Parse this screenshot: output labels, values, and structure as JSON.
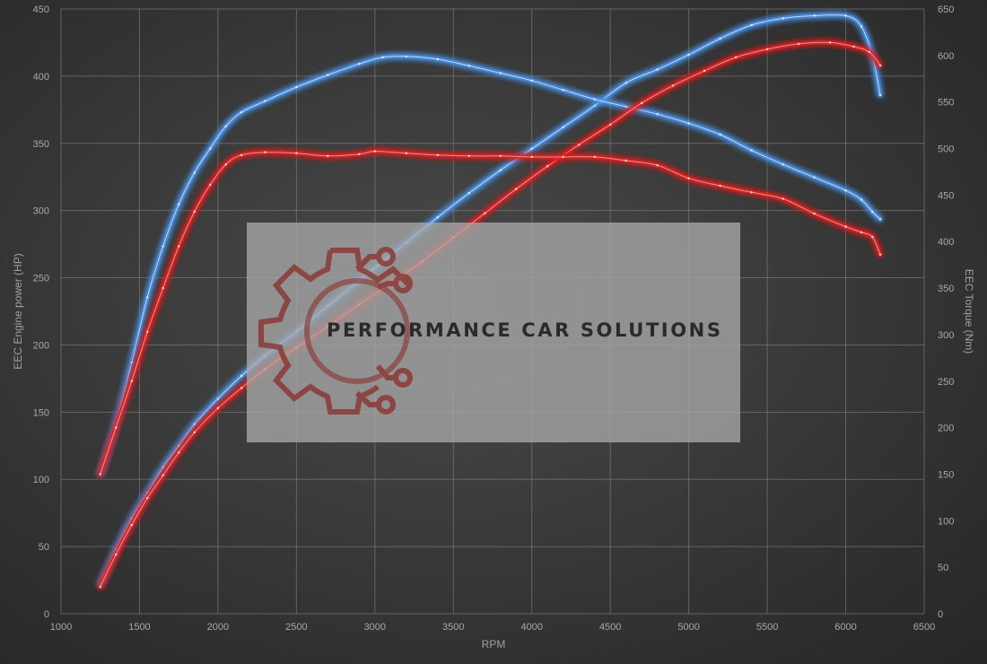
{
  "chart_data": {
    "type": "line",
    "xlabel": "RPM",
    "ylabel_left": "EEC Engine power (HP)",
    "ylabel_right": "EEC Torque (Nm)",
    "xlim": [
      1000,
      6500
    ],
    "ylim_left": [
      0,
      450
    ],
    "ylim_right": [
      0,
      650
    ],
    "x_ticks": [
      1000,
      1500,
      2000,
      2500,
      3000,
      3500,
      4000,
      4500,
      5000,
      5500,
      6000,
      6500
    ],
    "y_ticks_left": [
      0,
      50,
      100,
      150,
      200,
      250,
      300,
      350,
      400,
      450
    ],
    "y_ticks_right": [
      0,
      50,
      100,
      150,
      200,
      250,
      300,
      350,
      400,
      450,
      500,
      550,
      600,
      650
    ],
    "grid": true,
    "series": [
      {
        "color": "#4a8fe0",
        "axis": "left",
        "x": [
          1250,
          1350,
          1450,
          1550,
          1650,
          1750,
          1850,
          2000,
          2150,
          2300,
          2500,
          2700,
          2900,
          3050,
          3200,
          3400,
          3600,
          3800,
          4000,
          4200,
          4400,
          4600,
          4800,
          5000,
          5200,
          5400,
          5600,
          5800,
          6000,
          6100,
          6170,
          6220
        ],
        "y": [
          22,
          48,
          71,
          90,
          109,
          125,
          141,
          160,
          177,
          192,
          210,
          229,
          248,
          262,
          276,
          295,
          313,
          330,
          346,
          362,
          378,
          395,
          405,
          416,
          428,
          438,
          443,
          445,
          445,
          437,
          415,
          386
        ]
      },
      {
        "color": "#4a8fe0",
        "axis": "right",
        "x": [
          1250,
          1350,
          1450,
          1550,
          1650,
          1750,
          1850,
          1950,
          2050,
          2150,
          2300,
          2500,
          2700,
          2900,
          3050,
          3200,
          3400,
          3600,
          3800,
          4000,
          4200,
          4400,
          4600,
          4800,
          5000,
          5200,
          5400,
          5600,
          5800,
          6000,
          6100,
          6170,
          6220
        ],
        "y": [
          150,
          205,
          270,
          340,
          395,
          440,
          474,
          500,
          524,
          539,
          551,
          566,
          579,
          591,
          598,
          599,
          596,
          589,
          581,
          573,
          563,
          553,
          545,
          537,
          527,
          515,
          498,
          483,
          469,
          455,
          445,
          432,
          424
        ]
      },
      {
        "color": "#d42020",
        "axis": "left",
        "x": [
          1250,
          1350,
          1450,
          1550,
          1650,
          1750,
          1850,
          2000,
          2150,
          2300,
          2500,
          2700,
          2900,
          3100,
          3300,
          3500,
          3700,
          3900,
          4100,
          4300,
          4500,
          4700,
          4900,
          5100,
          5300,
          5500,
          5700,
          5900,
          6050,
          6150,
          6220
        ],
        "y": [
          20,
          44,
          66,
          86,
          103,
          120,
          135,
          153,
          168,
          182,
          198,
          214,
          230,
          246,
          262,
          280,
          298,
          316,
          333,
          349,
          364,
          380,
          393,
          404,
          414,
          420,
          424,
          425,
          422,
          418,
          408
        ]
      },
      {
        "color": "#d42020",
        "axis": "right",
        "x": [
          1250,
          1350,
          1450,
          1550,
          1650,
          1750,
          1850,
          1950,
          2050,
          2150,
          2300,
          2500,
          2700,
          2900,
          3000,
          3200,
          3400,
          3600,
          3800,
          4000,
          4200,
          4400,
          4600,
          4800,
          5000,
          5200,
          5400,
          5600,
          5800,
          6000,
          6100,
          6170,
          6220
        ],
        "y": [
          150,
          200,
          250,
          303,
          350,
          395,
          432,
          461,
          483,
          493,
          496,
          495,
          492,
          494,
          497,
          495,
          493,
          492,
          492,
          491,
          491,
          491,
          487,
          482,
          468,
          460,
          453,
          446,
          430,
          416,
          410,
          405,
          386
        ]
      }
    ]
  },
  "watermark": {
    "brand_text": "PERFORMANCE CAR SOLUTIONS",
    "logo_color": "#8b3a36"
  }
}
